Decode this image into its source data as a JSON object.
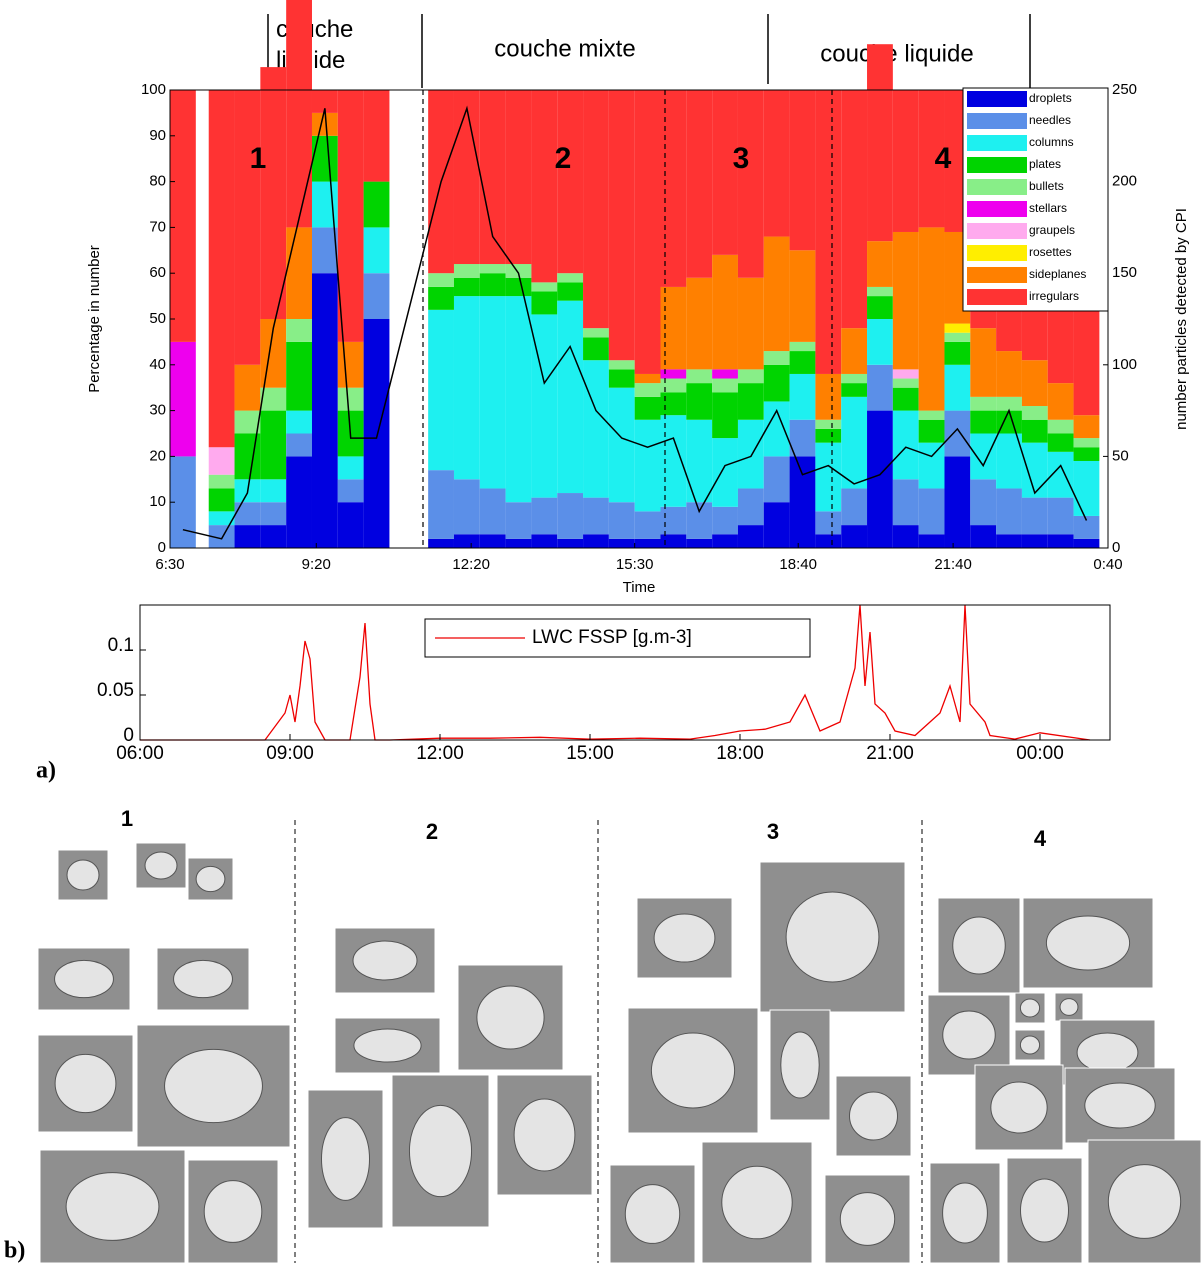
{
  "chart_data": [
    {
      "type": "bar",
      "stacked": true,
      "zones": [
        "couche liquide",
        "couche mixte",
        "couche liquide"
      ],
      "region_labels": [
        "1",
        "2",
        "3",
        "4"
      ],
      "xlabel": "Time",
      "ylabel": "Percentage in number",
      "y2label": "number particles detected by CPI",
      "x": [
        6.75,
        7.5,
        8.0,
        8.5,
        9.0,
        9.5,
        10.0,
        10.5,
        11.75,
        12.25,
        12.75,
        13.25,
        13.75,
        14.25,
        14.75,
        15.25,
        15.75,
        16.25,
        16.75,
        17.25,
        17.75,
        18.25,
        18.75,
        19.25,
        19.75,
        20.25,
        20.75,
        21.25,
        21.75,
        22.25,
        22.75,
        23.25,
        23.75,
        24.25
      ],
      "xlim": [
        6.5,
        24.667
      ],
      "xticks": [
        {
          "value": 6.5,
          "label": "6:30"
        },
        {
          "value": 9.333,
          "label": "9:20"
        },
        {
          "value": 12.333,
          "label": "12:20"
        },
        {
          "value": 15.5,
          "label": "15:30"
        },
        {
          "value": 18.667,
          "label": "18:40"
        },
        {
          "value": 21.667,
          "label": "21:40"
        },
        {
          "value": 24.667,
          "label": "0:40"
        }
      ],
      "ylim": [
        0,
        100
      ],
      "yticks": [
        0,
        10,
        20,
        30,
        40,
        50,
        60,
        70,
        80,
        90,
        100
      ],
      "y2lim": [
        0,
        250
      ],
      "y2ticks": [
        0,
        50,
        100,
        150,
        200,
        250
      ],
      "legend": "upper right",
      "series": [
        {
          "name": "droplets",
          "color": "#0000e0",
          "values": [
            0,
            0,
            5,
            5,
            20,
            60,
            10,
            50,
            2,
            3,
            3,
            2,
            3,
            2,
            3,
            2,
            2,
            3,
            2,
            3,
            5,
            10,
            20,
            3,
            5,
            30,
            5,
            3,
            20,
            5,
            3,
            3,
            3,
            2
          ]
        },
        {
          "name": "needles",
          "color": "#5b8fe8",
          "values": [
            20,
            5,
            5,
            5,
            5,
            10,
            5,
            10,
            15,
            12,
            10,
            8,
            8,
            10,
            8,
            8,
            6,
            6,
            8,
            6,
            8,
            10,
            8,
            5,
            8,
            10,
            10,
            10,
            10,
            10,
            10,
            8,
            8,
            5
          ]
        },
        {
          "name": "columns",
          "color": "#1ef0f0",
          "values": [
            0,
            3,
            5,
            5,
            5,
            10,
            5,
            10,
            35,
            40,
            42,
            45,
            40,
            42,
            30,
            25,
            20,
            20,
            18,
            15,
            15,
            12,
            10,
            15,
            20,
            10,
            15,
            10,
            10,
            10,
            12,
            12,
            10,
            12
          ]
        },
        {
          "name": "plates",
          "color": "#00d400",
          "values": [
            0,
            5,
            10,
            15,
            15,
            10,
            10,
            10,
            5,
            4,
            5,
            4,
            5,
            4,
            5,
            4,
            5,
            5,
            8,
            10,
            8,
            8,
            5,
            3,
            3,
            5,
            5,
            5,
            5,
            5,
            5,
            5,
            4,
            3
          ]
        },
        {
          "name": "bullets",
          "color": "#88ee88",
          "values": [
            0,
            3,
            5,
            5,
            5,
            0,
            5,
            0,
            3,
            3,
            2,
            3,
            2,
            2,
            2,
            2,
            3,
            3,
            3,
            3,
            3,
            3,
            2,
            2,
            2,
            2,
            2,
            2,
            2,
            3,
            3,
            3,
            3,
            2
          ]
        },
        {
          "name": "stellars",
          "color": "#ee00ee",
          "values": [
            25,
            0,
            0,
            0,
            0,
            0,
            0,
            0,
            0,
            0,
            0,
            0,
            0,
            0,
            0,
            0,
            0,
            2,
            0,
            2,
            0,
            0,
            0,
            0,
            0,
            0,
            0,
            0,
            0,
            0,
            0,
            0,
            0,
            0
          ]
        },
        {
          "name": "graupels",
          "color": "#ffaaee",
          "values": [
            0,
            6,
            0,
            0,
            0,
            0,
            0,
            0,
            0,
            0,
            0,
            0,
            0,
            0,
            0,
            0,
            0,
            0,
            0,
            0,
            0,
            0,
            0,
            0,
            0,
            0,
            2,
            0,
            0,
            0,
            0,
            0,
            0,
            0
          ]
        },
        {
          "name": "rosettes",
          "color": "#ffee00",
          "values": [
            0,
            0,
            0,
            0,
            0,
            0,
            0,
            0,
            0,
            0,
            0,
            0,
            0,
            0,
            0,
            0,
            0,
            0,
            0,
            0,
            0,
            0,
            0,
            0,
            0,
            0,
            0,
            0,
            2,
            0,
            0,
            0,
            0,
            0
          ]
        },
        {
          "name": "sideplanes",
          "color": "#ff8000",
          "values": [
            0,
            0,
            10,
            15,
            20,
            5,
            10,
            0,
            0,
            0,
            0,
            0,
            0,
            0,
            0,
            0,
            2,
            18,
            20,
            25,
            20,
            25,
            20,
            10,
            10,
            10,
            30,
            40,
            20,
            15,
            10,
            10,
            8,
            5
          ]
        },
        {
          "name": "irregulars",
          "color": "#ff3333",
          "values": [
            55,
            78,
            60,
            55,
            50,
            5,
            55,
            20,
            40,
            38,
            38,
            38,
            42,
            40,
            52,
            59,
            62,
            43,
            41,
            36,
            41,
            32,
            35,
            62,
            52,
            43,
            31,
            30,
            31,
            52,
            57,
            59,
            64,
            71
          ]
        }
      ],
      "line": {
        "color": "#000000",
        "axis": "y2",
        "values": [
          10,
          5,
          30,
          120,
          180,
          240,
          60,
          60,
          200,
          240,
          170,
          150,
          90,
          110,
          75,
          60,
          55,
          60,
          20,
          45,
          50,
          75,
          40,
          45,
          35,
          40,
          55,
          50,
          65,
          45,
          75,
          30,
          45,
          15
        ]
      }
    },
    {
      "type": "line",
      "x": [
        6,
        8.5,
        8.9,
        9.0,
        9.1,
        9.2,
        9.3,
        9.4,
        9.5,
        9.7,
        10.2,
        10.4,
        10.5,
        10.6,
        10.7,
        11,
        12,
        13,
        14,
        15,
        16,
        17,
        17.5,
        18,
        18.5,
        19,
        19.3,
        19.6,
        20,
        20.3,
        20.4,
        20.5,
        20.6,
        20.7,
        20.9,
        21.1,
        21.5,
        21.8,
        22,
        22.2,
        22.4,
        22.5,
        22.6,
        22.9,
        23,
        23.5,
        24,
        25
      ],
      "xlim": [
        6,
        25.4
      ],
      "xticks": [
        {
          "value": 6,
          "label": "06:00"
        },
        {
          "value": 9,
          "label": "09:00"
        },
        {
          "value": 12,
          "label": "12:00"
        },
        {
          "value": 15,
          "label": "15:00"
        },
        {
          "value": 18,
          "label": "18:00"
        },
        {
          "value": 21,
          "label": "21:00"
        },
        {
          "value": 24,
          "label": "00:00"
        }
      ],
      "ylim": [
        0,
        0.15
      ],
      "yticks": [
        0,
        0.05,
        0.1
      ],
      "legend": "upper center",
      "series": [
        {
          "name": "LWC FSSP [g.m-3]",
          "color": "#ee0000",
          "values": [
            0,
            0,
            0.03,
            0.05,
            0.02,
            0.06,
            0.11,
            0.09,
            0.02,
            0,
            0,
            0.07,
            0.13,
            0.04,
            0,
            0,
            0.002,
            0.002,
            0.003,
            0.001,
            0.002,
            0.001,
            0.005,
            0.01,
            0.012,
            0.02,
            0.05,
            0.01,
            0.02,
            0.08,
            0.15,
            0.06,
            0.12,
            0.04,
            0.03,
            0.01,
            0.005,
            0.02,
            0.03,
            0.06,
            0.02,
            0.15,
            0.04,
            0.02,
            0.005,
            0.001,
            0.008,
            0
          ]
        }
      ]
    }
  ],
  "panels": {
    "a": "a)",
    "b": "b)"
  },
  "panel_b": {
    "groups": [
      "1",
      "2",
      "3",
      "4"
    ]
  }
}
